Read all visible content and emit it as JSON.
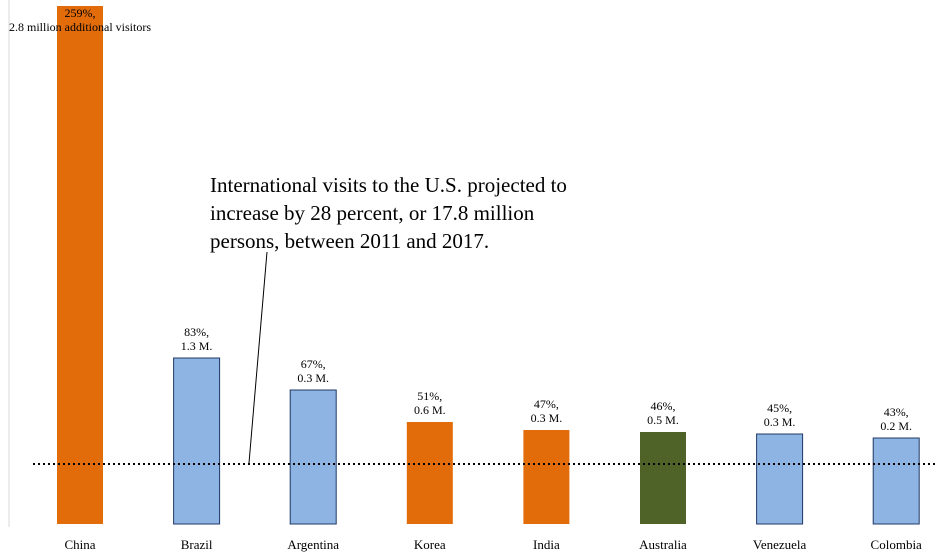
{
  "chart_data": {
    "type": "bar",
    "categories": [
      "China",
      "Brazil",
      "Argentina",
      "Korea",
      "India",
      "Australia",
      "Venezuela",
      "Colombia"
    ],
    "values": [
      259,
      83,
      67,
      51,
      47,
      46,
      45,
      43
    ],
    "data_labels": [
      [
        "259%,",
        "2.8 million additional visitors"
      ],
      [
        "83%,",
        "1.3 M."
      ],
      [
        "67%,",
        "0.3 M."
      ],
      [
        "51%,",
        "0.6 M."
      ],
      [
        "47%,",
        "0.3 M."
      ],
      [
        "46%,",
        "0.5 M."
      ],
      [
        "45%,",
        "0.3 M."
      ],
      [
        "43%,",
        "0.2 M."
      ]
    ],
    "bar_colors": [
      "#E36C0A",
      "#8EB4E3",
      "#8EB4E3",
      "#E36C0A",
      "#E36C0A",
      "#4F6228",
      "#8EB4E3",
      "#8EB4E3"
    ],
    "bar_edge_color": "#1F3864",
    "reference_line": {
      "value": 28,
      "style": "dotted",
      "color": "#000000"
    },
    "annotation": [
      "International visits  to the U.S. projected to",
      "increase by 28 percent, or 17.8 million",
      "persons, between 2011 and 2017."
    ],
    "ylim": [
      0,
      270
    ],
    "grid": false,
    "legend": "none",
    "title": "",
    "xlabel": "",
    "ylabel": ""
  }
}
